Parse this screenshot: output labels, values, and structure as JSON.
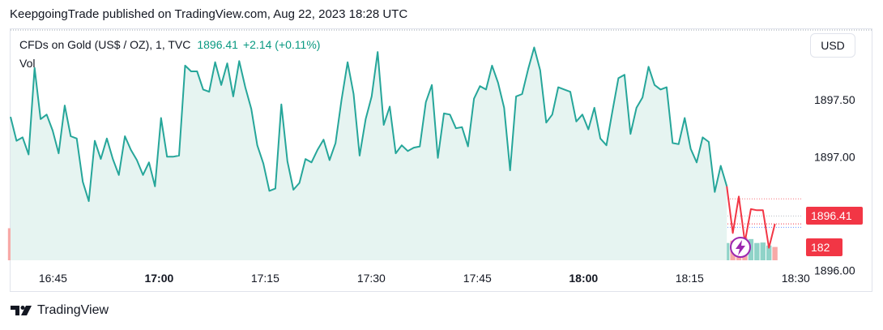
{
  "header": {
    "publisher_text": "KeepgoingTrade published on TradingView.com, Aug 22, 2023 18:28 UTC"
  },
  "legend": {
    "symbol": "CFDs on Gold (US$ / OZ), 1, TVC",
    "price": "1896.41",
    "change": "+2.14 (+0.11%)",
    "volume_label": "Vol"
  },
  "toolbar": {
    "currency": "USD"
  },
  "price_tag": "1896.41",
  "volume_tag": "182",
  "footer": {
    "brand": "TradingView"
  },
  "colors": {
    "line_up": "#26a69a",
    "line_down": "#f23645",
    "area_fill": "#e6f4f1",
    "vol_up": "#8fd3c8",
    "vol_down": "#f7a9a7",
    "accent_purple": "#9c27b0"
  },
  "icons": {
    "logo": "tradingview-logo-icon",
    "lightning": "lightning-icon"
  },
  "chart_data": {
    "type": "line",
    "title": "",
    "xlabel": "",
    "ylabel": "",
    "xlim": [
      "16:39",
      "18:31"
    ],
    "ylim": [
      1895.82,
      1898.12
    ],
    "x_ticks": [
      "16:45",
      "17:00",
      "17:15",
      "17:30",
      "17:45",
      "18:00",
      "18:15",
      "18:30"
    ],
    "x_ticks_bold": [
      "17:00",
      "18:00"
    ],
    "y_ticks": [
      "1896.00",
      "1896.50",
      "1897.00",
      "1897.50",
      "1898.00"
    ],
    "y_ticks_hidden": [
      "1896.00",
      "1896.50"
    ],
    "grid": false,
    "series": [
      {
        "values": [
          1897.35,
          1897.14,
          1897.17,
          1897.02,
          1897.78,
          1897.33,
          1897.37,
          1897.23,
          1897.03,
          1897.45,
          1897.18,
          1897.16,
          1896.78,
          1896.61,
          1897.14,
          1896.98,
          1897.16,
          1896.98,
          1896.84,
          1897.18,
          1897.06,
          1896.97,
          1896.84,
          1896.95,
          1896.74,
          1897.34,
          1897.0,
          1897.0,
          1897.01,
          1897.8,
          1897.75,
          1897.75,
          1897.59,
          1897.57,
          1897.83,
          1897.63,
          1897.82,
          1897.53,
          1897.84,
          1897.61,
          1897.42,
          1897.1,
          1896.94,
          1896.7,
          1896.72,
          1897.46,
          1896.96,
          1896.71,
          1896.77,
          1896.98,
          1896.95,
          1897.06,
          1897.15,
          1896.97,
          1897.12,
          1897.5,
          1897.83,
          1897.55,
          1897.01,
          1897.33,
          1897.53,
          1897.92,
          1897.28,
          1897.44,
          1897.03,
          1897.1,
          1897.05,
          1897.08,
          1897.09,
          1897.48,
          1897.63,
          1896.99,
          1897.38,
          1897.37,
          1897.25,
          1897.26,
          1897.09,
          1897.51,
          1897.62,
          1897.59,
          1897.8,
          1897.65,
          1897.43,
          1896.88,
          1897.53,
          1897.55,
          1897.77,
          1897.96,
          1897.76,
          1897.3,
          1897.37,
          1897.61,
          1897.59,
          1897.57,
          1897.31,
          1897.37,
          1897.24,
          1897.43,
          1897.16,
          1897.1,
          1897.4,
          1897.69,
          1897.72,
          1897.2,
          1897.43,
          1897.52,
          1897.79,
          1897.63,
          1897.59,
          1897.61,
          1897.12,
          1897.11,
          1897.34,
          1897.07,
          1896.95,
          1897.17,
          1897.13,
          1896.69,
          1896.92,
          1896.74,
          1896.33,
          1896.65,
          1896.25,
          1896.54,
          1896.53,
          1896.53,
          1896.2,
          1896.41
        ],
        "bearish_from_index": 119
      }
    ],
    "volume": {
      "label": "Vol",
      "values": [
        130,
        80,
        76,
        120,
        110,
        128,
        240,
        84,
        50,
        155,
        120,
        82,
        112,
        92,
        88,
        135,
        95,
        90,
        72,
        86,
        160,
        86,
        130,
        90,
        90,
        82,
        135,
        107,
        170,
        86,
        118,
        100,
        138,
        100,
        96,
        92,
        102,
        108,
        118,
        120,
        110,
        75,
        124,
        100,
        124,
        128,
        125,
        52,
        96,
        100,
        106,
        62,
        96,
        120,
        130,
        125,
        180,
        210,
        122,
        126,
        130,
        154,
        87,
        104,
        79,
        84,
        80,
        92,
        86,
        82,
        95,
        100,
        230,
        116,
        132,
        90,
        92,
        100,
        80,
        90,
        88,
        86,
        90,
        76,
        108,
        100,
        74,
        64,
        82,
        88,
        86,
        80,
        88,
        74,
        106,
        102,
        96,
        102,
        89,
        74,
        100,
        96,
        84,
        90,
        78,
        74,
        96,
        104,
        82,
        75,
        96,
        110,
        128,
        94,
        79,
        68,
        90,
        82,
        76,
        70,
        80,
        66,
        92,
        86,
        70,
        72,
        60,
        54
      ],
      "down_flags": [
        1,
        0,
        0,
        1,
        0,
        1,
        1,
        1,
        0,
        1,
        0,
        0,
        1,
        1,
        1,
        0,
        0,
        1,
        1,
        0,
        1,
        1,
        1,
        0,
        0,
        1,
        1,
        1,
        1,
        0,
        1,
        1,
        1,
        1,
        1,
        1,
        0,
        0,
        0,
        1,
        0,
        0,
        1,
        0,
        1,
        1,
        1,
        0,
        0,
        1,
        0,
        0,
        1,
        0,
        1,
        0,
        1,
        1,
        1,
        0,
        0,
        1,
        0,
        0,
        1,
        0,
        0,
        0,
        0,
        0,
        0,
        1,
        0,
        0,
        0,
        1,
        1,
        1,
        0,
        1,
        0,
        1,
        1,
        0,
        0,
        0,
        1,
        1,
        1,
        1,
        1,
        0,
        1,
        0,
        1,
        1,
        1,
        0,
        1,
        0,
        1,
        0,
        0,
        0,
        0,
        0,
        1,
        1,
        1,
        1,
        0,
        1,
        1,
        1,
        0,
        1,
        1,
        0,
        1,
        0,
        1,
        1,
        1,
        0,
        0,
        0,
        0,
        1
      ]
    },
    "current_price_line": 1896.41,
    "bid_ask_lines": [
      1896.63,
      1896.38,
      1896.48
    ]
  }
}
